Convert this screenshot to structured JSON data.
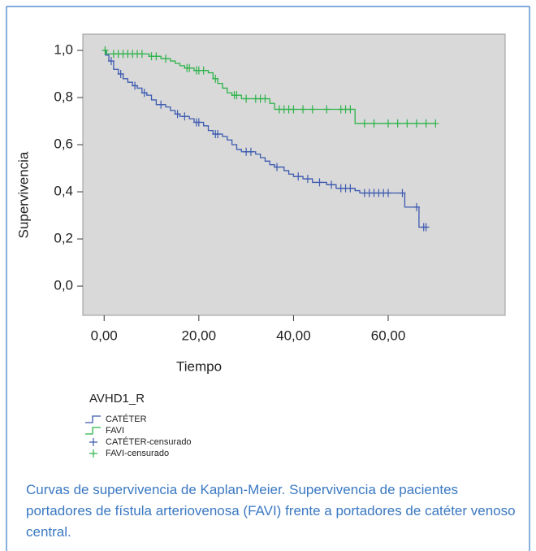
{
  "chart_data": {
    "type": "kaplan-meier",
    "xlabel": "Tiempo",
    "ylabel": "Supervivencia",
    "xlim": [
      -4.5,
      84.7
    ],
    "ylim": [
      -0.124,
      1.069
    ],
    "xticks": [
      {
        "value": 0,
        "label": "0,00"
      },
      {
        "value": 20,
        "label": "20,00"
      },
      {
        "value": 40,
        "label": "40,00"
      },
      {
        "value": 60,
        "label": "60,00"
      }
    ],
    "yticks": [
      {
        "value": 0,
        "label": "0,0"
      },
      {
        "value": 0.2,
        "label": "0,2"
      },
      {
        "value": 0.4,
        "label": "0,4"
      },
      {
        "value": 0.6,
        "label": "0,6"
      },
      {
        "value": 0.8,
        "label": "0,8"
      },
      {
        "value": 1,
        "label": "1,0"
      }
    ],
    "legend_title": "AVHD1_R",
    "series": [
      {
        "name": "CATÉTER",
        "color": "#3d5ab0",
        "style": "step",
        "x": [
          0,
          0.3,
          1,
          2,
          3,
          4,
          5,
          6,
          7,
          8,
          9,
          10,
          11,
          13,
          14,
          15,
          16,
          18,
          19,
          21,
          22,
          23,
          25,
          26,
          27,
          28,
          29,
          32,
          33,
          34,
          35,
          36,
          38,
          39,
          40,
          42,
          44,
          47,
          49,
          53,
          54,
          63.5,
          66.5,
          68
        ],
        "values": [
          1,
          0.98,
          0.955,
          0.92,
          0.9,
          0.88,
          0.865,
          0.85,
          0.84,
          0.82,
          0.81,
          0.79,
          0.77,
          0.76,
          0.745,
          0.73,
          0.72,
          0.71,
          0.695,
          0.68,
          0.66,
          0.645,
          0.635,
          0.62,
          0.6,
          0.58,
          0.57,
          0.56,
          0.545,
          0.53,
          0.515,
          0.505,
          0.49,
          0.475,
          0.465,
          0.455,
          0.44,
          0.43,
          0.415,
          0.405,
          0.395,
          0.335,
          0.25,
          0.25
        ]
      },
      {
        "name": "FAVI",
        "color": "#2db34a",
        "style": "step",
        "x": [
          0,
          0.5,
          9.5,
          12,
          14,
          15,
          16,
          17,
          19,
          22,
          23,
          24,
          25,
          26,
          27,
          29,
          35,
          36,
          53,
          70
        ],
        "values": [
          1,
          0.985,
          0.975,
          0.965,
          0.955,
          0.945,
          0.935,
          0.925,
          0.915,
          0.905,
          0.88,
          0.86,
          0.84,
          0.82,
          0.81,
          0.795,
          0.775,
          0.75,
          0.69,
          0.69
        ]
      },
      {
        "name": "CATÉTER-censurado",
        "color": "#3d5ab0",
        "style": "censored",
        "x": [
          1.5,
          3.5,
          6.5,
          8.5,
          12,
          15.5,
          17,
          19.5,
          20,
          23.5,
          24,
          30,
          31,
          36.5,
          41,
          43,
          45.5,
          48,
          50,
          51,
          52,
          55,
          56,
          57,
          58,
          59,
          60,
          63,
          66,
          67.5,
          68
        ],
        "values": [
          0.955,
          0.9,
          0.85,
          0.82,
          0.77,
          0.73,
          0.72,
          0.695,
          0.695,
          0.645,
          0.645,
          0.57,
          0.57,
          0.505,
          0.465,
          0.455,
          0.44,
          0.43,
          0.415,
          0.415,
          0.415,
          0.395,
          0.395,
          0.395,
          0.395,
          0.395,
          0.395,
          0.395,
          0.335,
          0.25,
          0.25
        ]
      },
      {
        "name": "FAVI-censurado",
        "color": "#2db34a",
        "style": "censored",
        "x": [
          0.2,
          2,
          3,
          4,
          5,
          6,
          7,
          8,
          10,
          11,
          13,
          17.5,
          18,
          19.5,
          20,
          21,
          23.5,
          27.5,
          28,
          30,
          32,
          33,
          34,
          37,
          38,
          39,
          40,
          42,
          44,
          47,
          50,
          51,
          52,
          55,
          57,
          60,
          62,
          64,
          66,
          68,
          70
        ],
        "values": [
          1,
          0.985,
          0.985,
          0.985,
          0.985,
          0.985,
          0.985,
          0.985,
          0.975,
          0.975,
          0.965,
          0.925,
          0.925,
          0.915,
          0.915,
          0.915,
          0.88,
          0.81,
          0.81,
          0.795,
          0.795,
          0.795,
          0.795,
          0.75,
          0.75,
          0.75,
          0.75,
          0.75,
          0.75,
          0.75,
          0.75,
          0.75,
          0.75,
          0.69,
          0.69,
          0.69,
          0.69,
          0.69,
          0.69,
          0.69,
          0.69
        ]
      }
    ]
  },
  "caption": "Curvas de supervivencia de Kaplan-Meier. Supervivencia de pacientes portadores de fístula arteriovenosa (FAVI) frente a portadores de catéter venoso central."
}
